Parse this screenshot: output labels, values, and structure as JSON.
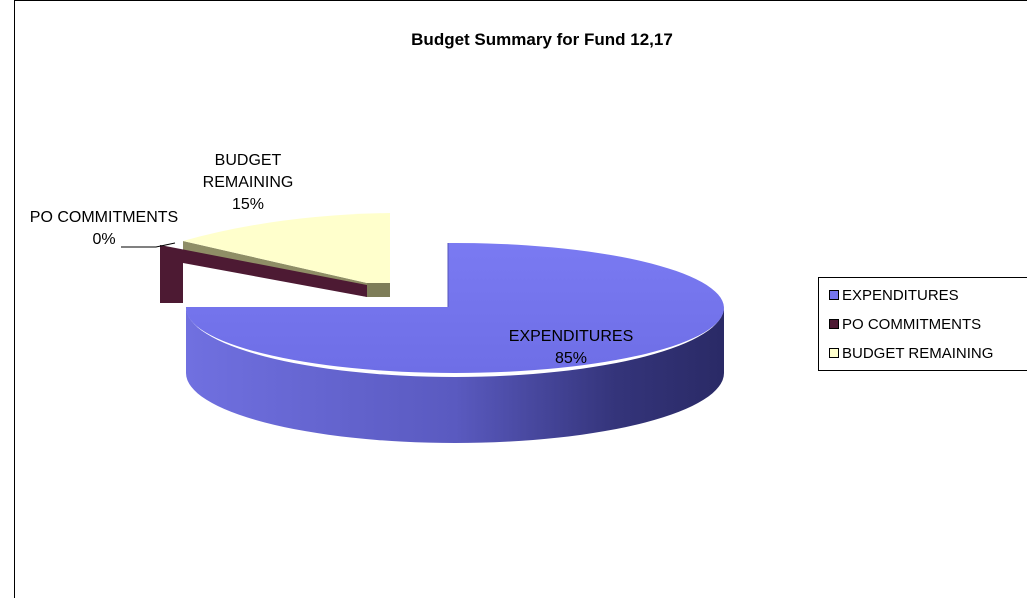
{
  "chart_data": {
    "type": "pie",
    "title": "Budget Summary for Fund 12,17",
    "three_d": true,
    "exploded": true,
    "categories": [
      "EXPENDITURES",
      "PO COMMITMENTS",
      "BUDGET REMAINING"
    ],
    "values": [
      85,
      0,
      15
    ],
    "labels": [
      {
        "category": "EXPENDITURES",
        "percent_text": "85%"
      },
      {
        "category": "PO COMMITMENTS",
        "percent_text": "0%"
      },
      {
        "category": "BUDGET REMAINING",
        "percent_text": "15%"
      }
    ],
    "colors": [
      "#7575EE",
      "#4D1A33",
      "#FFFFCC"
    ],
    "legend": {
      "position": "right",
      "items": [
        "EXPENDITURES",
        "PO COMMITMENTS",
        "BUDGET REMAINING"
      ]
    }
  }
}
